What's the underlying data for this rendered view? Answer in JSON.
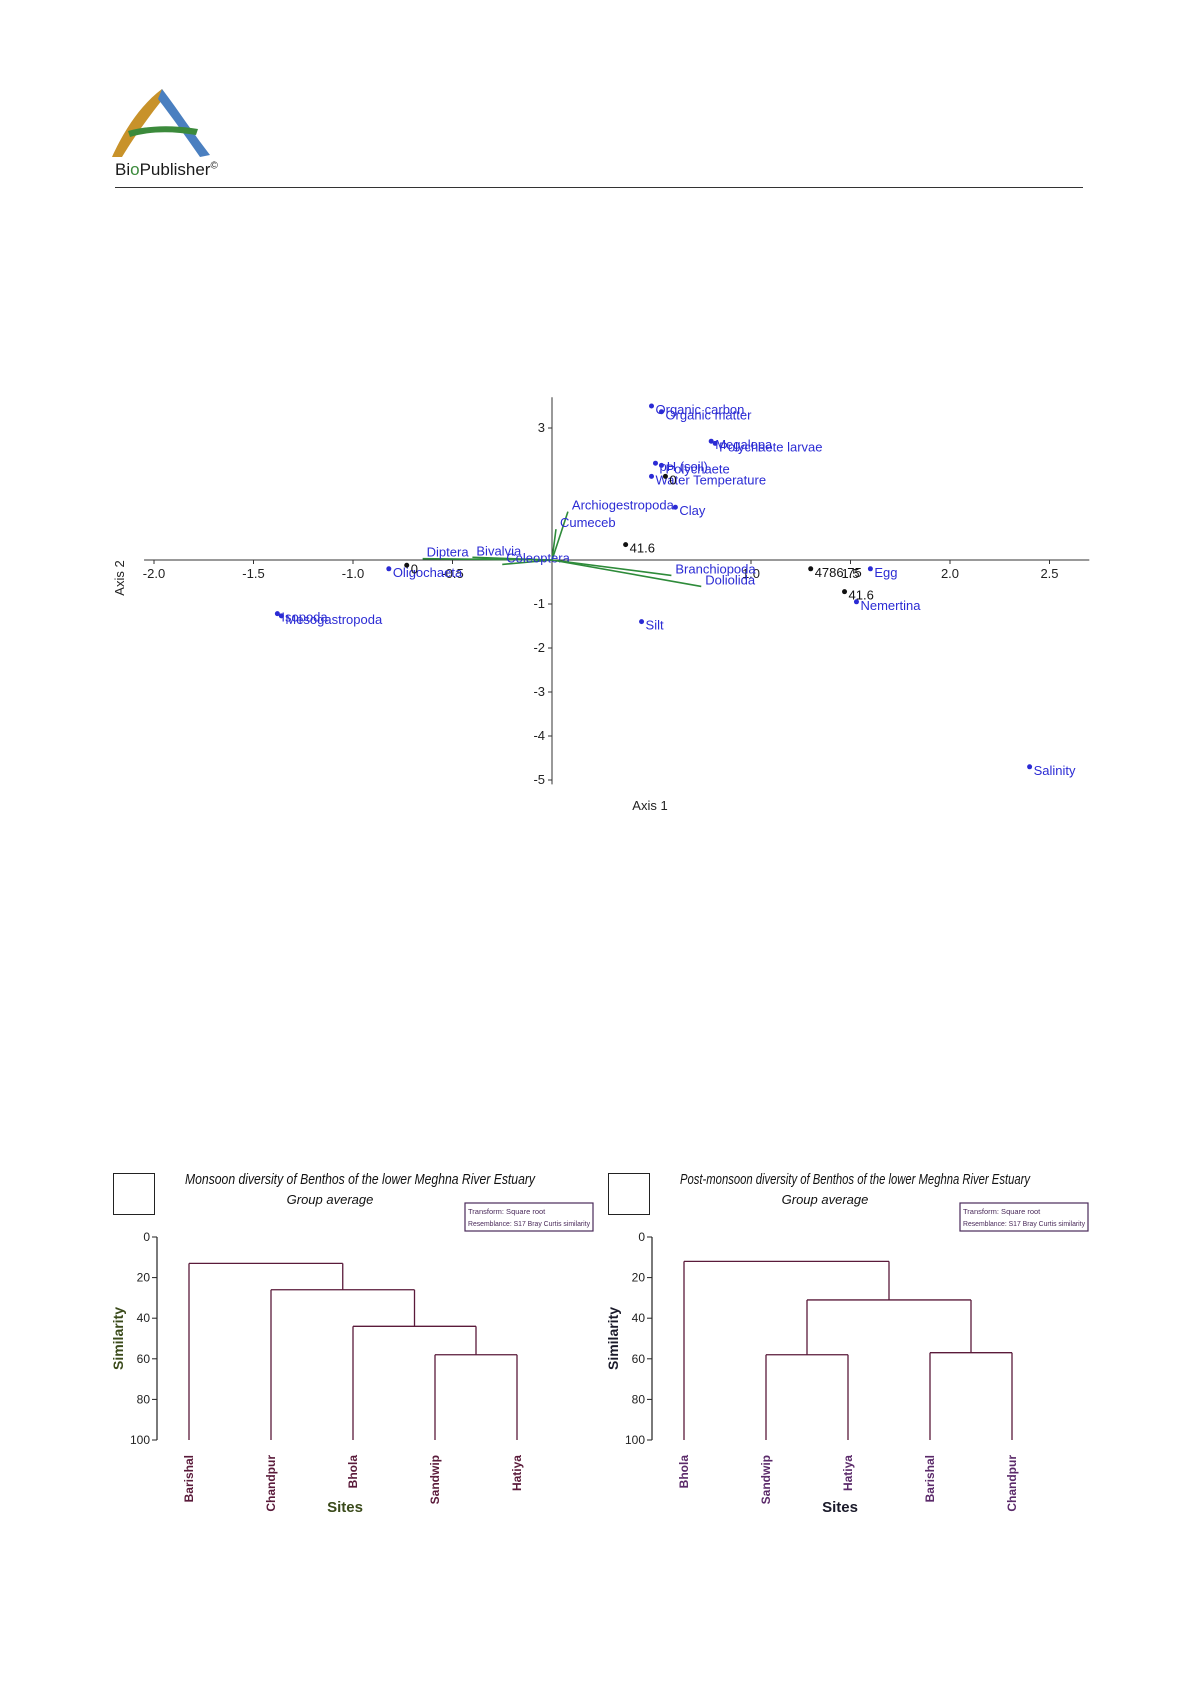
{
  "header": {
    "brand_bio": "Bi",
    "brand_o": "o",
    "brand_rest": "Publisher",
    "brand_mark": "©"
  },
  "colors": {
    "label_blue": "#2b2bd4",
    "vector_green": "#2e8b3a",
    "site_black": "#111111",
    "dendro_maroon": "#5a1a3a",
    "dendro_purple": "#5b2a6a",
    "axis_title_green": "#3a4a1a"
  },
  "chart_data": [
    {
      "type": "scatter",
      "title": "",
      "xlabel": "Axis 1",
      "ylabel": "Axis 2",
      "xlim": [
        -2.0,
        2.7
      ],
      "ylim": [
        -5.2,
        3.7
      ],
      "xticks": [
        "-2.0",
        "-1.5",
        "-1.0",
        "-0.5",
        "1.0",
        "1.5",
        "2.0",
        "2.5"
      ],
      "yticks": [
        "3",
        "-1",
        "-2",
        "-3",
        "-4",
        "-5"
      ],
      "points": [
        {
          "label": "Organic carbon",
          "x": 0.5,
          "y": 3.5
        },
        {
          "label": "Organic matter",
          "x": 0.55,
          "y": 3.37
        },
        {
          "label": "Megalopa",
          "x": 0.8,
          "y": 2.7
        },
        {
          "label": "Polychaete larvae",
          "x": 0.82,
          "y": 2.65
        },
        {
          "label": "pH (soil)",
          "x": 0.52,
          "y": 2.2
        },
        {
          "label": "Polychaete",
          "x": 0.55,
          "y": 2.15
        },
        {
          "label": "Water Temperature",
          "x": 0.5,
          "y": 1.9
        },
        {
          "label": "Clay",
          "x": 0.62,
          "y": 1.2
        },
        {
          "label": "Oligochaeta",
          "x": -0.82,
          "y": -0.2
        },
        {
          "label": "Isopoda",
          "x": -1.38,
          "y": -1.22
        },
        {
          "label": "Mesogastropoda",
          "x": -1.36,
          "y": -1.27
        },
        {
          "label": "Silt",
          "x": 0.45,
          "y": -1.4
        },
        {
          "label": "Egg",
          "x": 1.6,
          "y": -0.2
        },
        {
          "label": "Nemertina",
          "x": 1.53,
          "y": -0.95
        },
        {
          "label": "Salinity",
          "x": 2.4,
          "y": -4.7
        }
      ],
      "sites": [
        {
          "label": "41.6",
          "x": 0.37,
          "y": 0.35
        },
        {
          "label": "0",
          "x": -0.73,
          "y": -0.12
        },
        {
          "label": "0",
          "x": 0.57,
          "y": 1.9
        },
        {
          "label": "4786.75",
          "x": 1.3,
          "y": -0.2
        },
        {
          "label": "41.6",
          "x": 1.47,
          "y": -0.72
        }
      ],
      "vectors": [
        {
          "label": "Archiogestropoda",
          "x": 0.08,
          "y": 1.1
        },
        {
          "label": "Cumeceb",
          "x": 0.02,
          "y": 0.7
        },
        {
          "label": "Bivalvia",
          "x": -0.4,
          "y": 0.06
        },
        {
          "label": "Diptera",
          "x": -0.65,
          "y": 0.03
        },
        {
          "label": "Coleoptera",
          "x": -0.25,
          "y": -0.1
        },
        {
          "label": "Branchiopoda",
          "x": 0.6,
          "y": -0.35
        },
        {
          "label": "Doliolida",
          "x": 0.75,
          "y": -0.6
        }
      ]
    },
    {
      "type": "dendrogram",
      "title": "Monsoon diversity of Benthos of the lower Meghna River Estuary",
      "subtitle": "Group average",
      "legend": [
        "Transform: Square root",
        "Resemblance: S17 Bray Curtis similarity"
      ],
      "ylabel": "Similarity",
      "xlabel": "Sites",
      "ylim": [
        0,
        100
      ],
      "yticks": [
        "0",
        "20",
        "40",
        "60",
        "80",
        "100"
      ],
      "leaves": [
        "Barishal",
        "Chandpur",
        "Bhola",
        "Sandwip",
        "Hatiya"
      ],
      "merges": [
        {
          "left": "Sandwip",
          "right": "Hatiya",
          "similarity": 58
        },
        {
          "left": "Bhola",
          "right": "Sandwip+Hatiya",
          "similarity": 44
        },
        {
          "left": "Chandpur",
          "right": "Bhola+Sandwip+Hatiya",
          "similarity": 26
        },
        {
          "left": "Barishal",
          "right": "rest",
          "similarity": 13
        }
      ]
    },
    {
      "type": "dendrogram",
      "title": "Post-monsoon diversity of Benthos of the lower Meghna River Estuary",
      "subtitle": "Group average",
      "legend": [
        "Transform: Square root",
        "Resemblance: S17 Bray Curtis similarity"
      ],
      "ylabel": "Similarity",
      "xlabel": "Sites",
      "ylim": [
        0,
        100
      ],
      "yticks": [
        "0",
        "20",
        "40",
        "60",
        "80",
        "100"
      ],
      "leaves": [
        "Bhola",
        "Sandwip",
        "Hatiya",
        "Barishal",
        "Chandpur"
      ],
      "merges": [
        {
          "left": "Sandwip",
          "right": "Hatiya",
          "similarity": 58
        },
        {
          "left": "Barishal",
          "right": "Chandpur",
          "similarity": 57
        },
        {
          "left": "Sandwip+Hatiya",
          "right": "Barishal+Chandpur",
          "similarity": 31
        },
        {
          "left": "Bhola",
          "right": "rest",
          "similarity": 12
        }
      ]
    }
  ]
}
